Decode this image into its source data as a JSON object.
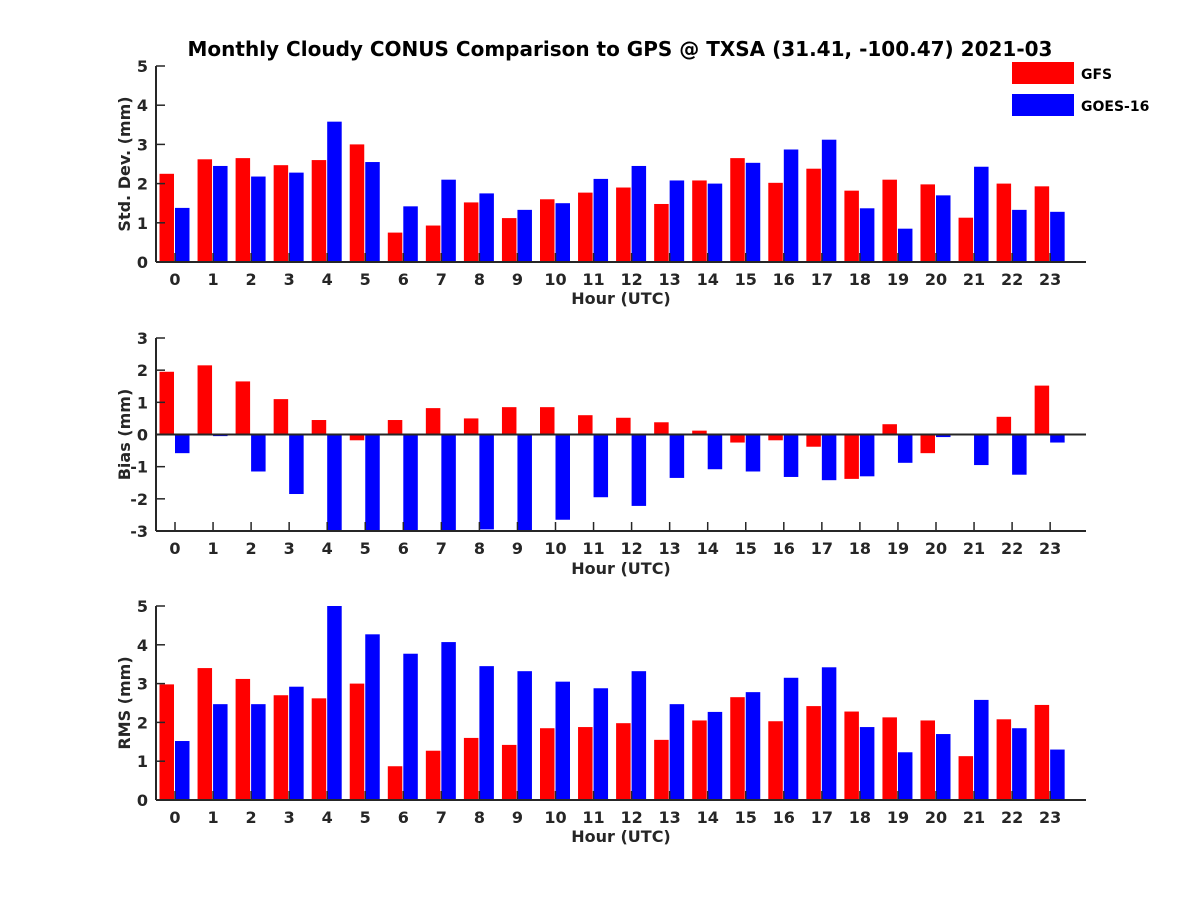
{
  "title": "Monthly Cloudy CONUS Comparison to GPS @ TXSA (31.41, -100.47) 2021-03",
  "colors": {
    "GFS": "#ff0000",
    "GOES-16": "#0000ff",
    "axis": "#262626"
  },
  "legend": {
    "placement": "top-right",
    "entries": [
      "GFS",
      "GOES-16"
    ]
  },
  "chart_data": [
    {
      "type": "bar",
      "xlabel": "Hour (UTC)",
      "ylabel": "Std. Dev. (mm)",
      "ylim": [
        0,
        5
      ],
      "yticks": [
        "0",
        "1",
        "2",
        "3",
        "4",
        "5"
      ],
      "categories": [
        "0",
        "1",
        "2",
        "3",
        "4",
        "5",
        "6",
        "7",
        "8",
        "9",
        "10",
        "11",
        "12",
        "13",
        "14",
        "15",
        "16",
        "17",
        "18",
        "19",
        "20",
        "21",
        "22",
        "23"
      ],
      "series": [
        {
          "name": "GFS",
          "values": [
            2.25,
            2.62,
            2.65,
            2.47,
            2.6,
            3.0,
            0.75,
            0.93,
            1.52,
            1.12,
            1.6,
            1.77,
            1.9,
            1.48,
            2.08,
            2.65,
            2.02,
            2.38,
            1.82,
            2.1,
            1.98,
            1.13,
            2.0,
            1.93
          ]
        },
        {
          "name": "GOES-16",
          "values": [
            1.38,
            2.45,
            2.18,
            2.28,
            3.58,
            2.55,
            1.42,
            2.1,
            1.75,
            1.33,
            1.5,
            2.12,
            2.45,
            2.08,
            2.0,
            2.53,
            2.87,
            3.12,
            1.37,
            0.85,
            1.7,
            2.43,
            1.33,
            1.28
          ]
        }
      ]
    },
    {
      "type": "bar",
      "xlabel": "Hour (UTC)",
      "ylabel": "Bias (mm)",
      "ylim": [
        -3,
        3
      ],
      "yticks": [
        "-3",
        "-2",
        "-1",
        "0",
        "1",
        "2",
        "3"
      ],
      "categories": [
        "0",
        "1",
        "2",
        "3",
        "4",
        "5",
        "6",
        "7",
        "8",
        "9",
        "10",
        "11",
        "12",
        "13",
        "14",
        "15",
        "16",
        "17",
        "18",
        "19",
        "20",
        "21",
        "22",
        "23"
      ],
      "series": [
        {
          "name": "GFS",
          "values": [
            1.95,
            2.15,
            1.65,
            1.1,
            0.45,
            -0.18,
            0.45,
            0.82,
            0.5,
            0.85,
            0.85,
            0.6,
            0.52,
            0.38,
            0.12,
            -0.25,
            -0.18,
            -0.38,
            -1.38,
            0.32,
            -0.58,
            -0.03,
            0.55,
            1.52
          ]
        },
        {
          "name": "GOES-16",
          "values": [
            -0.58,
            -0.05,
            -1.15,
            -1.85,
            -3.0,
            -3.0,
            -3.0,
            -3.0,
            -2.95,
            -3.0,
            -2.65,
            -1.95,
            -2.22,
            -1.35,
            -1.08,
            -1.15,
            -1.32,
            -1.42,
            -1.3,
            -0.88,
            -0.08,
            -0.95,
            -1.25,
            -0.25
          ]
        }
      ]
    },
    {
      "type": "bar",
      "xlabel": "Hour (UTC)",
      "ylabel": "RMS (mm)",
      "ylim": [
        0,
        5
      ],
      "yticks": [
        "0",
        "1",
        "2",
        "3",
        "4",
        "5"
      ],
      "categories": [
        "0",
        "1",
        "2",
        "3",
        "4",
        "5",
        "6",
        "7",
        "8",
        "9",
        "10",
        "11",
        "12",
        "13",
        "14",
        "15",
        "16",
        "17",
        "18",
        "19",
        "20",
        "21",
        "22",
        "23"
      ],
      "series": [
        {
          "name": "GFS",
          "values": [
            2.98,
            3.4,
            3.12,
            2.7,
            2.62,
            3.0,
            0.87,
            1.27,
            1.6,
            1.42,
            1.85,
            1.88,
            1.98,
            1.55,
            2.05,
            2.65,
            2.03,
            2.42,
            2.28,
            2.13,
            2.05,
            1.13,
            2.08,
            2.45
          ]
        },
        {
          "name": "GOES-16",
          "values": [
            1.52,
            2.47,
            2.47,
            2.92,
            5.0,
            4.27,
            3.77,
            4.07,
            3.45,
            3.32,
            3.05,
            2.88,
            3.32,
            2.47,
            2.27,
            2.78,
            3.15,
            3.42,
            1.88,
            1.23,
            1.7,
            2.58,
            1.85,
            1.3
          ]
        }
      ]
    }
  ]
}
